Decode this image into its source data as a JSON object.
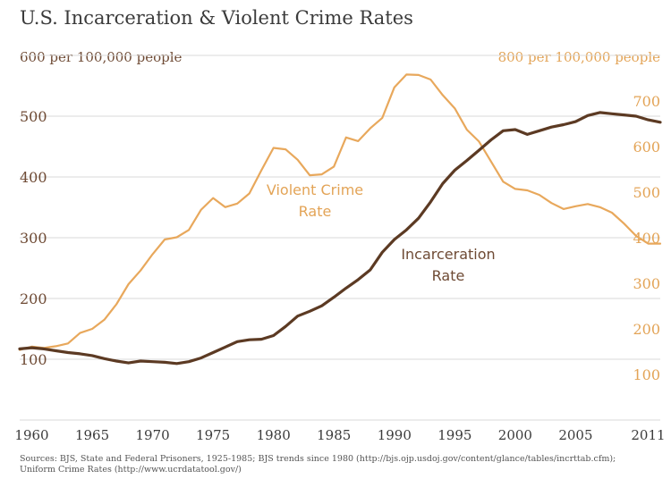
{
  "page": {
    "title": "U.S. Incarceration & Violent Crime Rates",
    "source_line1": "Sources: BJS, State and Federal Prisoners, 1925-1985; BJS trends since 1980 (http://bjs.ojp.usdoj.gov/content/glance/tables/incrttab.cfm);",
    "source_line2": "Uniform Crime Rates (http://www.ucrdatatool.gov/)"
  },
  "colors": {
    "incarceration": "#5c3a23",
    "crime": "#e8a85c",
    "grid": "#d9d9d9"
  },
  "chart_data": {
    "type": "line",
    "title": "U.S. Incarceration & Violent Crime Rates",
    "ylabel_left": "600 per 100,000 people",
    "ylabel_right": "800 per 100,000 people",
    "x_ticks": [
      1960,
      1965,
      1970,
      1975,
      1980,
      1985,
      1990,
      1995,
      2000,
      2005,
      2011
    ],
    "y_left_ticks": [
      100,
      200,
      300,
      400,
      500
    ],
    "y_right_ticks": [
      100,
      200,
      300,
      400,
      500,
      600,
      700
    ],
    "ylim_left": [
      0,
      600
    ],
    "ylim_right": [
      0,
      800
    ],
    "xlim": [
      1959,
      2012
    ],
    "grid": true,
    "series": [
      {
        "name": "Violent Crime Rate",
        "axis": "right",
        "annotation": [
          "Violent Crime",
          "Rate"
        ],
        "x": [
          1959,
          1960,
          1961,
          1962,
          1963,
          1964,
          1965,
          1966,
          1967,
          1968,
          1969,
          1970,
          1971,
          1972,
          1973,
          1974,
          1975,
          1976,
          1977,
          1978,
          1979,
          1980,
          1981,
          1982,
          1983,
          1984,
          1985,
          1986,
          1987,
          1988,
          1989,
          1990,
          1991,
          1992,
          1993,
          1994,
          1995,
          1996,
          1997,
          1998,
          1999,
          2000,
          2001,
          2002,
          2003,
          2004,
          2005,
          2006,
          2007,
          2008,
          2009,
          2010,
          2011,
          2012
        ],
        "values": [
          154,
          161,
          158,
          162,
          168,
          191,
          200,
          220,
          254,
          298,
          328,
          364,
          396,
          401,
          417,
          461,
          487,
          467,
          475,
          497,
          548,
          597,
          594,
          571,
          537,
          539,
          556,
          620,
          612,
          640,
          663,
          730,
          758,
          757,
          747,
          713,
          684,
          637,
          611,
          567,
          523,
          507,
          504,
          494,
          476,
          463,
          469,
          474,
          467,
          455,
          431,
          404,
          387,
          387
        ]
      },
      {
        "name": "Incarceration Rate",
        "axis": "left",
        "annotation": [
          "Incarceration",
          "Rate"
        ],
        "x": [
          1959,
          1960,
          1961,
          1962,
          1963,
          1964,
          1965,
          1966,
          1967,
          1968,
          1969,
          1970,
          1971,
          1972,
          1973,
          1974,
          1975,
          1976,
          1977,
          1978,
          1979,
          1980,
          1981,
          1982,
          1983,
          1984,
          1985,
          1986,
          1987,
          1988,
          1989,
          1990,
          1991,
          1992,
          1993,
          1994,
          1995,
          1996,
          1997,
          1998,
          1999,
          2000,
          2001,
          2002,
          2003,
          2004,
          2005,
          2006,
          2007,
          2008,
          2009,
          2010,
          2011,
          2012
        ],
        "values": [
          117,
          119,
          117,
          114,
          111,
          109,
          106,
          101,
          97,
          94,
          97,
          96,
          95,
          93,
          96,
          102,
          111,
          120,
          129,
          132,
          133,
          139,
          154,
          171,
          179,
          188,
          202,
          217,
          231,
          247,
          276,
          297,
          313,
          332,
          359,
          389,
          411,
          427,
          444,
          461,
          476,
          478,
          470,
          476,
          482,
          486,
          491,
          501,
          506,
          504,
          502,
          500,
          494,
          490
        ]
      }
    ]
  }
}
